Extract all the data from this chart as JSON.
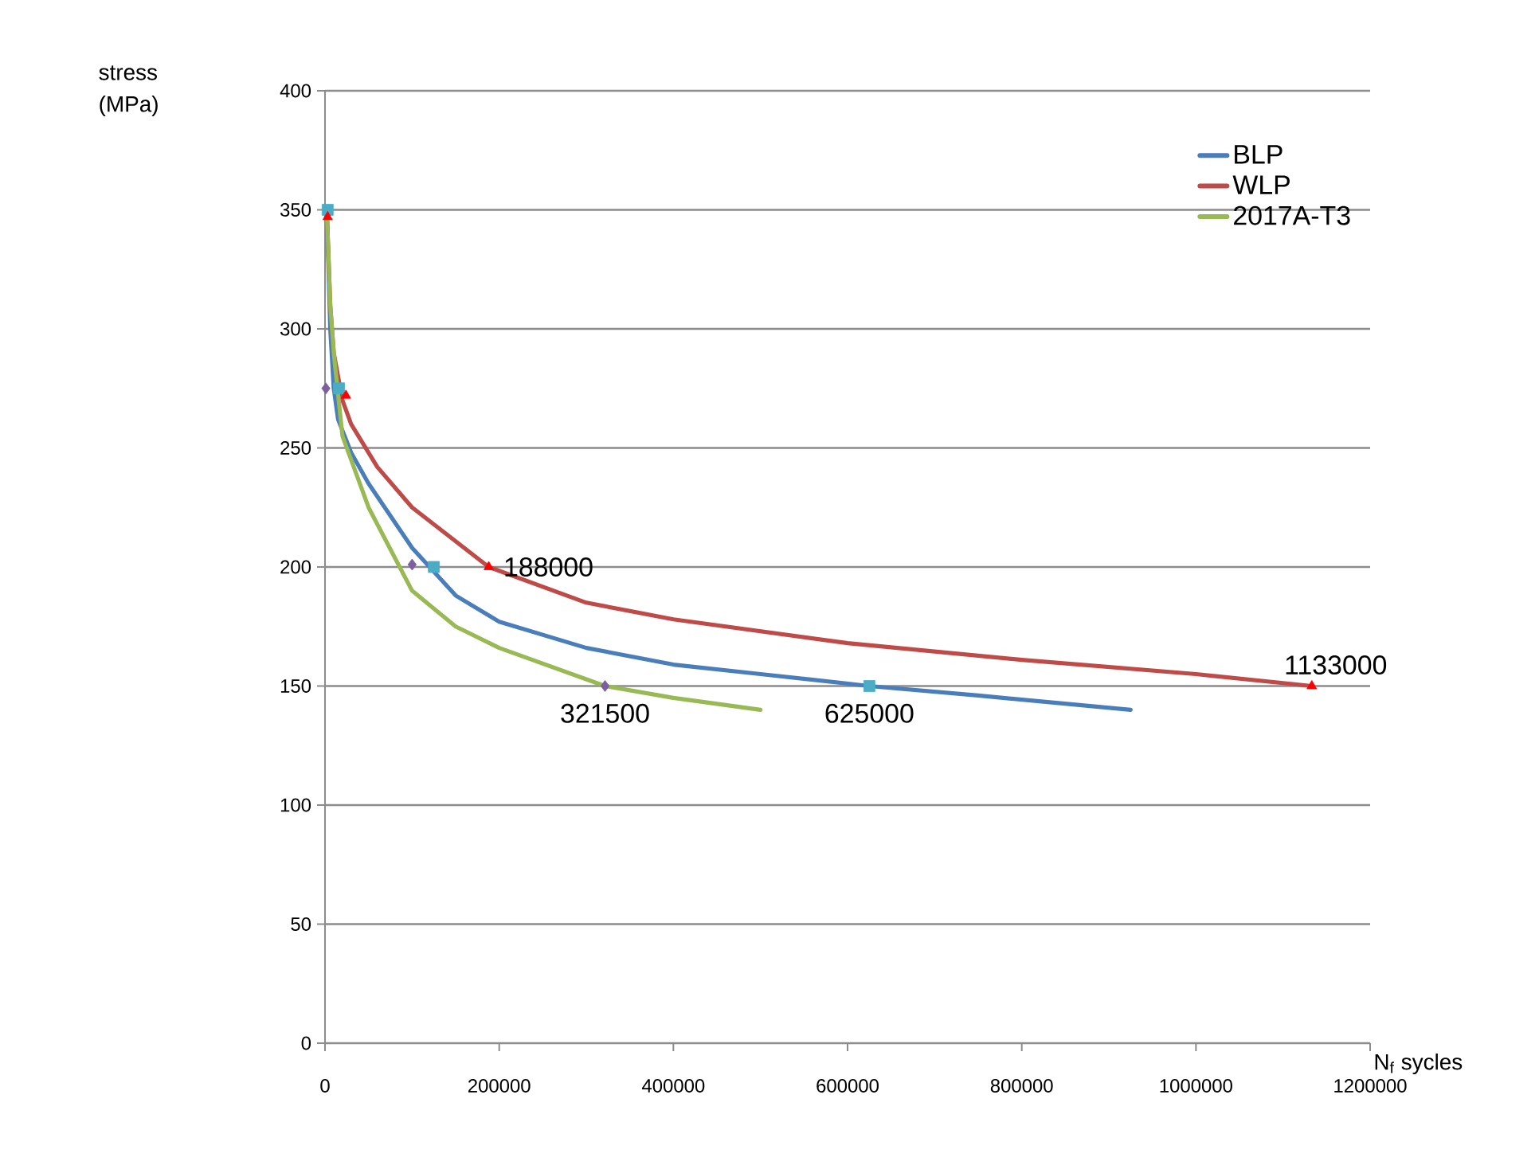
{
  "chart_data": {
    "type": "line",
    "xlabel": "N$_{f}$ sycles",
    "xlim": [
      0,
      1200000
    ],
    "xticks": [
      0,
      200000,
      400000,
      600000,
      800000,
      1000000,
      1200000
    ],
    "ylim": [
      0,
      400
    ],
    "yticks": [
      0,
      50,
      100,
      150,
      200,
      250,
      300,
      350,
      400
    ],
    "grid": "y",
    "legend": "top right",
    "series": [
      {
        "name": "BLP",
        "color": "#4a7ebb",
        "marker": "none",
        "x": [
          2000,
          6000,
          10000,
          15000,
          30000,
          50000,
          100000,
          150000,
          200000,
          300000,
          400000,
          500000,
          625000,
          750000,
          925000
        ],
        "values": [
          350,
          300,
          275,
          262,
          248,
          235,
          208,
          188,
          177,
          166,
          159,
          155,
          150,
          146,
          140
        ]
      },
      {
        "name": "WLP",
        "color": "#be4b48",
        "marker": "none",
        "x": [
          2000,
          6000,
          10000,
          20000,
          30000,
          60000,
          100000,
          188000,
          300000,
          400000,
          600000,
          800000,
          1000000,
          1133000
        ],
        "values": [
          350,
          310,
          290,
          270,
          260,
          242,
          225,
          200,
          185,
          178,
          168,
          161,
          155,
          150
        ]
      },
      {
        "name": "2017A-T3",
        "color": "#98b954",
        "marker": "none",
        "x": [
          2000,
          6000,
          10000,
          20000,
          50000,
          100000,
          150000,
          200000,
          321500,
          400000,
          500000
        ],
        "values": [
          350,
          310,
          290,
          255,
          225,
          190,
          175,
          166,
          150,
          145,
          140
        ]
      },
      {
        "type": "scatter",
        "color": "#7d5fa0",
        "marker": "diamond",
        "x": [
          1000,
          100000,
          321500
        ],
        "values": [
          275,
          201,
          150
        ]
      },
      {
        "type": "scatter",
        "color": "#4bacc6",
        "marker": "square",
        "x": [
          3000,
          16000,
          125000,
          625000
        ],
        "values": [
          350,
          275,
          200,
          150
        ]
      },
      {
        "type": "scatter",
        "color": "#ff0000",
        "marker": "triangle",
        "x": [
          3000,
          24000,
          188000,
          1133000
        ],
        "values": [
          347,
          272,
          200,
          150
        ]
      }
    ],
    "annotations": [
      "stress (MPa)",
      {
        "text": "188000",
        "x": 188000,
        "y": 200
      },
      {
        "text": "1133000",
        "x": 1133000,
        "y": 150
      },
      {
        "text": "321500",
        "x": 321500,
        "y": 150
      },
      {
        "text": "625000",
        "x": 625000,
        "y": 150
      }
    ]
  }
}
